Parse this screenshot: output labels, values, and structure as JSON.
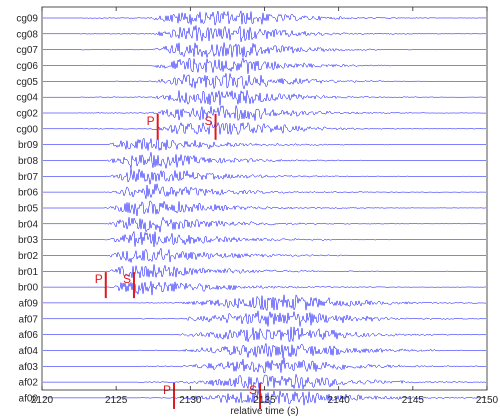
{
  "chart_data": {
    "type": "line",
    "xlabel": "relative time (s)",
    "xlim": [
      2120,
      2150
    ],
    "xticks": [
      2120,
      2125,
      2130,
      2135,
      2140,
      2145,
      2150
    ],
    "trace_color": "#0000ff",
    "pick_color": "#e0191e",
    "channels": [
      "cg09",
      "cg08",
      "cg07",
      "cg06",
      "cg05",
      "cg04",
      "cg02",
      "cg00",
      "br09",
      "br08",
      "br07",
      "br06",
      "br05",
      "br04",
      "br03",
      "br02",
      "br01",
      "br00",
      "af09",
      "af07",
      "af06",
      "af04",
      "af03",
      "af02",
      "af00"
    ],
    "groups": [
      {
        "channels": [
          "cg09",
          "cg08",
          "cg07",
          "cg06",
          "cg05",
          "cg04",
          "cg02",
          "cg00"
        ],
        "noise_start": 2122.5,
        "onset": 2127.2,
        "peak": 2129.5,
        "peak_end": 2134.0,
        "decay": 3.5
      },
      {
        "channels": [
          "br09",
          "br08",
          "br07",
          "br06",
          "br05",
          "br04",
          "br03",
          "br02",
          "br01",
          "br00"
        ],
        "noise_start": 2124.2,
        "onset": 2124.3,
        "peak": 2126.0,
        "peak_end": 2128.0,
        "decay": 4.5
      },
      {
        "channels": [
          "af09",
          "af07",
          "af06",
          "af04",
          "af03",
          "af02",
          "af00"
        ],
        "noise_start": 2126.5,
        "onset": 2128.8,
        "peak": 2134.7,
        "peak_end": 2137.5,
        "decay": 4.0
      }
    ],
    "picks": [
      {
        "label": "P",
        "x": 2127.8,
        "channel": "cg00"
      },
      {
        "label": "S",
        "x": 2131.7,
        "channel": "cg00"
      },
      {
        "label": "P",
        "x": 2124.3,
        "channel": "br00"
      },
      {
        "label": "S",
        "x": 2126.2,
        "channel": "br00"
      },
      {
        "label": "P",
        "x": 2128.9,
        "channel": "af00"
      },
      {
        "label": "S",
        "x": 2134.7,
        "channel": "af00"
      }
    ]
  }
}
